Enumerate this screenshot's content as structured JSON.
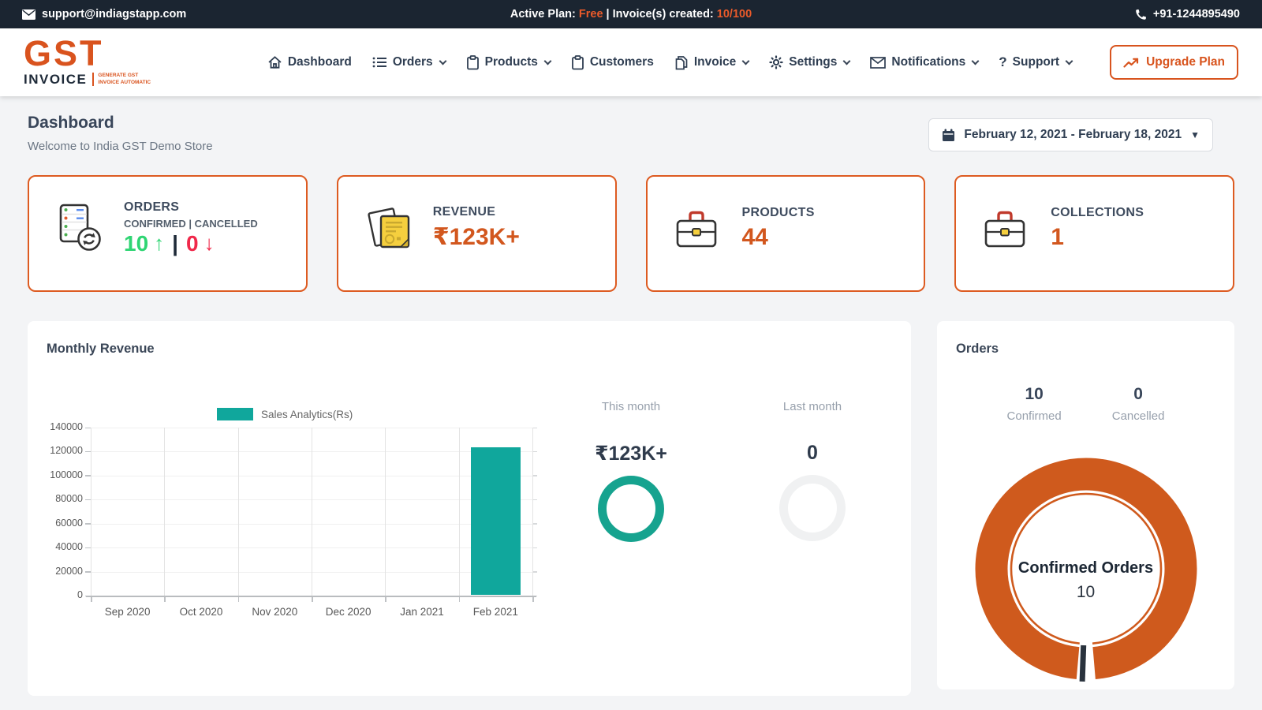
{
  "topbar": {
    "email": "support@indiagstapp.com",
    "plan_label": "Active Plan:",
    "plan_value": "Free",
    "invoices_label": "| Invoice(s) created:",
    "invoices_value": "10/100",
    "phone": "+91-1244895490"
  },
  "nav": {
    "logo": {
      "gst": "GST",
      "invoice": "INVOICE",
      "tagline_line1": "Generate GST",
      "tagline_line2": "Invoice Automatic"
    },
    "items": [
      {
        "label": "Dashboard",
        "icon": "home-icon",
        "has_caret": false
      },
      {
        "label": "Orders",
        "icon": "list-icon",
        "has_caret": true
      },
      {
        "label": "Products",
        "icon": "clipboard-icon",
        "has_caret": true
      },
      {
        "label": "Customers",
        "icon": "clipboard-icon",
        "has_caret": false
      },
      {
        "label": "Invoice",
        "icon": "pages-icon",
        "has_caret": true
      },
      {
        "label": "Settings",
        "icon": "gear-icon",
        "has_caret": true
      },
      {
        "label": "Notifications",
        "icon": "envelope-icon",
        "has_caret": true
      },
      {
        "label": "Support",
        "icon": "question-icon",
        "has_caret": true
      }
    ],
    "upgrade_label": "Upgrade Plan"
  },
  "page": {
    "title": "Dashboard",
    "subtitle": "Welcome to India GST Demo Store",
    "date_range": "February 12, 2021 - February 18, 2021"
  },
  "stats": [
    {
      "title": "ORDERS",
      "subtitle": "CONFIRMED | CANCELLED",
      "confirmed": "10",
      "cancelled": "0",
      "confirmed_arrow": "↑",
      "cancelled_arrow": "↓",
      "divider": "|"
    },
    {
      "title": "REVENUE",
      "value": "₹123K+"
    },
    {
      "title": "PRODUCTS",
      "value": "44"
    },
    {
      "title": "COLLECTIONS",
      "value": "1"
    }
  ],
  "revenue_panel": {
    "title": "Monthly Revenue",
    "this_month": {
      "label": "This month",
      "value": "₹123K+"
    },
    "last_month": {
      "label": "Last month",
      "value": "0"
    }
  },
  "orders_panel": {
    "title": "Orders",
    "confirmed_value": "10",
    "confirmed_label": "Confirmed",
    "cancelled_value": "0",
    "cancelled_label": "Cancelled",
    "donut_center_label": "Confirmed Orders",
    "donut_center_value": "10",
    "donut": {
      "confirmed": 10,
      "cancelled": 0,
      "ring_color": "#cf5a1d",
      "sliver_color": "#29323d"
    }
  },
  "chart_data": {
    "type": "bar",
    "title": "Monthly Revenue",
    "categories": [
      "Sep 2020",
      "Oct 2020",
      "Nov 2020",
      "Dec 2020",
      "Jan 2021",
      "Feb 2021"
    ],
    "values": [
      0,
      0,
      0,
      0,
      0,
      123000
    ],
    "series_name": "Sales Analytics(Rs)",
    "legend_position": "top",
    "grid": true,
    "ylim": [
      0,
      140000
    ],
    "ytick_step": 20000,
    "bar_color": "#10a79c"
  },
  "colors": {
    "accent_orange": "#d8541e",
    "topbar_orange": "#ea5a2a",
    "teal": "#10a79c",
    "ring_teal": "#16a38f",
    "green": "#2fd573",
    "red": "#f0284a",
    "navy": "#1b2531",
    "donut_orange": "#cf5a1d"
  }
}
